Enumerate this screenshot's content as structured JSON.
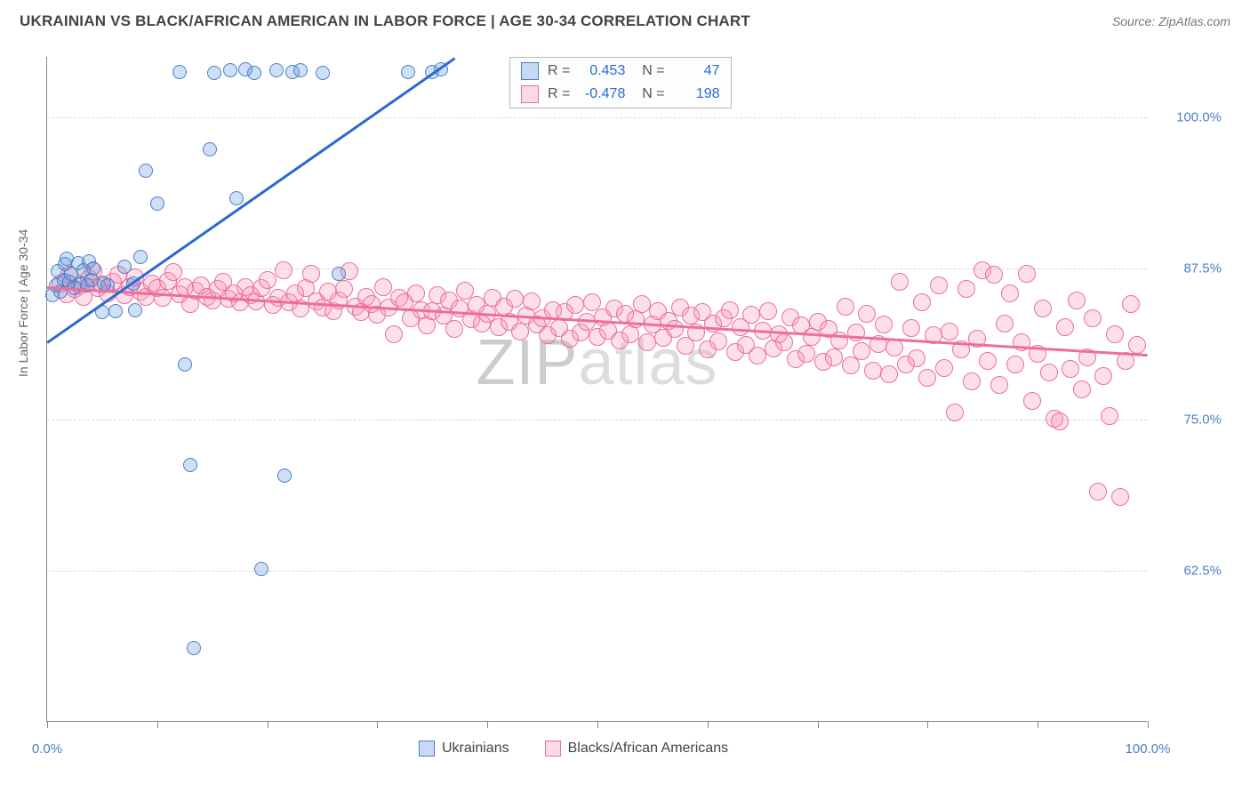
{
  "header": {
    "title": "UKRAINIAN VS BLACK/AFRICAN AMERICAN IN LABOR FORCE | AGE 30-34 CORRELATION CHART",
    "source": "Source: ZipAtlas.com"
  },
  "chart": {
    "type": "scatter",
    "y_label": "In Labor Force | Age 30-34",
    "watermark": "ZIPatlas",
    "background_color": "#ffffff",
    "grid_color": "#d8d8d8",
    "axis_color": "#888888",
    "tick_label_color": "#4a7ec9",
    "x_range": [
      0,
      100
    ],
    "y_range": [
      50,
      105
    ],
    "y_ticks": [
      62.5,
      75.0,
      87.5,
      100.0
    ],
    "y_tick_labels": [
      "62.5%",
      "75.0%",
      "87.5%",
      "100.0%"
    ],
    "x_ticks": [
      0,
      10,
      20,
      30,
      40,
      50,
      60,
      70,
      80,
      90,
      100
    ],
    "x_tick_labels": {
      "first": "0.0%",
      "last": "100.0%"
    },
    "series": {
      "ukrainians": {
        "label": "Ukrainians",
        "color_fill": "rgba(96,150,220,0.30)",
        "color_stroke": "#4a7ec9",
        "trend_color": "#2a6ad0",
        "marker_radius": 8,
        "r_value": "0.453",
        "n_value": "47",
        "trend": {
          "x1": 0,
          "y1": 81.5,
          "x2": 37,
          "y2": 105
        },
        "points": [
          [
            0.5,
            85.2
          ],
          [
            0.8,
            86.0
          ],
          [
            1.0,
            87.2
          ],
          [
            1.2,
            85.5
          ],
          [
            1.5,
            86.5
          ],
          [
            1.6,
            87.8
          ],
          [
            1.8,
            88.2
          ],
          [
            2.0,
            86.3
          ],
          [
            2.2,
            87.0
          ],
          [
            2.5,
            85.8
          ],
          [
            2.8,
            87.9
          ],
          [
            3.0,
            86.1
          ],
          [
            3.3,
            87.3
          ],
          [
            3.6,
            86.0
          ],
          [
            3.8,
            88.0
          ],
          [
            4.0,
            86.5
          ],
          [
            4.2,
            87.4
          ],
          [
            5.0,
            83.8
          ],
          [
            5.2,
            86.2
          ],
          [
            5.5,
            86.0
          ],
          [
            6.2,
            83.9
          ],
          [
            7.0,
            87.6
          ],
          [
            7.8,
            86.2
          ],
          [
            8.0,
            84.0
          ],
          [
            8.5,
            88.4
          ],
          [
            9.0,
            95.5
          ],
          [
            10.0,
            92.8
          ],
          [
            12.0,
            103.7
          ],
          [
            12.5,
            79.5
          ],
          [
            13.0,
            71.2
          ],
          [
            13.3,
            56.0
          ],
          [
            14.8,
            97.3
          ],
          [
            15.2,
            103.6
          ],
          [
            16.6,
            103.8
          ],
          [
            17.2,
            93.2
          ],
          [
            18.0,
            103.9
          ],
          [
            18.8,
            103.6
          ],
          [
            19.5,
            62.6
          ],
          [
            20.8,
            103.8
          ],
          [
            21.6,
            70.3
          ],
          [
            22.3,
            103.7
          ],
          [
            23.0,
            103.8
          ],
          [
            25.0,
            103.6
          ],
          [
            26.5,
            87.0
          ],
          [
            32.8,
            103.7
          ],
          [
            35.0,
            103.7
          ],
          [
            35.8,
            103.9
          ]
        ]
      },
      "black_african_american": {
        "label": "Blacks/African Americans",
        "color_fill": "rgba(248,150,185,0.30)",
        "color_stroke": "#ed6e9a",
        "trend_color": "#ed6e9a",
        "marker_radius": 10,
        "r_value": "-0.478",
        "n_value": "198",
        "trend": {
          "x1": 0,
          "y1": 86.0,
          "x2": 100,
          "y2": 80.4
        },
        "points": [
          [
            1.2,
            86.2
          ],
          [
            1.8,
            85.3
          ],
          [
            2.0,
            86.9
          ],
          [
            2.5,
            85.7
          ],
          [
            3.0,
            86.0
          ],
          [
            3.3,
            85.1
          ],
          [
            3.8,
            86.6
          ],
          [
            4.2,
            87.2
          ],
          [
            4.6,
            85.8
          ],
          [
            5.0,
            86.1
          ],
          [
            5.5,
            85.4
          ],
          [
            6.0,
            86.3
          ],
          [
            6.5,
            86.9
          ],
          [
            7.0,
            85.2
          ],
          [
            7.5,
            85.9
          ],
          [
            8.0,
            86.7
          ],
          [
            8.5,
            85.5
          ],
          [
            9.0,
            85.1
          ],
          [
            9.5,
            86.2
          ],
          [
            10.0,
            85.8
          ],
          [
            10.5,
            85.0
          ],
          [
            11.0,
            86.4
          ],
          [
            11.5,
            87.1
          ],
          [
            12.0,
            85.3
          ],
          [
            12.5,
            85.9
          ],
          [
            13.0,
            84.5
          ],
          [
            13.5,
            85.6
          ],
          [
            14.0,
            86.0
          ],
          [
            14.5,
            85.1
          ],
          [
            15.0,
            84.8
          ],
          [
            15.5,
            85.7
          ],
          [
            16.0,
            86.3
          ],
          [
            16.5,
            84.9
          ],
          [
            17.0,
            85.4
          ],
          [
            17.5,
            84.6
          ],
          [
            18.0,
            85.9
          ],
          [
            18.5,
            85.2
          ],
          [
            19.0,
            84.7
          ],
          [
            19.5,
            85.8
          ],
          [
            20.0,
            86.5
          ],
          [
            20.5,
            84.4
          ],
          [
            21.0,
            85.0
          ],
          [
            21.5,
            87.3
          ],
          [
            22.0,
            84.6
          ],
          [
            22.5,
            85.4
          ],
          [
            23.0,
            84.1
          ],
          [
            23.5,
            85.8
          ],
          [
            24.0,
            87.0
          ],
          [
            24.5,
            84.7
          ],
          [
            25.0,
            84.2
          ],
          [
            25.5,
            85.5
          ],
          [
            26.0,
            83.9
          ],
          [
            26.5,
            84.8
          ],
          [
            27.0,
            85.7
          ],
          [
            27.5,
            87.2
          ],
          [
            28.0,
            84.3
          ],
          [
            28.5,
            83.8
          ],
          [
            29.0,
            85.1
          ],
          [
            29.5,
            84.5
          ],
          [
            30.0,
            83.6
          ],
          [
            30.5,
            85.9
          ],
          [
            31.0,
            84.2
          ],
          [
            31.5,
            82.0
          ],
          [
            32.0,
            85.0
          ],
          [
            32.5,
            84.6
          ],
          [
            33.0,
            83.3
          ],
          [
            33.5,
            85.4
          ],
          [
            34.0,
            84.0
          ],
          [
            34.5,
            82.7
          ],
          [
            35.0,
            83.9
          ],
          [
            35.5,
            85.2
          ],
          [
            36.0,
            83.5
          ],
          [
            36.5,
            84.8
          ],
          [
            37.0,
            82.4
          ],
          [
            37.5,
            84.1
          ],
          [
            38.0,
            85.6
          ],
          [
            38.5,
            83.2
          ],
          [
            39.0,
            84.4
          ],
          [
            39.5,
            82.9
          ],
          [
            40.0,
            83.7
          ],
          [
            40.5,
            85.0
          ],
          [
            41.0,
            82.6
          ],
          [
            41.5,
            84.3
          ],
          [
            42.0,
            83.0
          ],
          [
            42.5,
            84.9
          ],
          [
            43.0,
            82.2
          ],
          [
            43.5,
            83.5
          ],
          [
            44.0,
            84.7
          ],
          [
            44.5,
            82.8
          ],
          [
            45.0,
            83.3
          ],
          [
            45.5,
            81.9
          ],
          [
            46.0,
            84.0
          ],
          [
            46.5,
            82.5
          ],
          [
            47.0,
            83.8
          ],
          [
            47.5,
            81.6
          ],
          [
            48.0,
            84.4
          ],
          [
            48.5,
            82.1
          ],
          [
            49.0,
            83.0
          ],
          [
            49.5,
            84.6
          ],
          [
            50.0,
            81.8
          ],
          [
            50.5,
            83.4
          ],
          [
            51.0,
            82.3
          ],
          [
            51.5,
            84.1
          ],
          [
            52.0,
            81.5
          ],
          [
            52.5,
            83.7
          ],
          [
            53.0,
            82.0
          ],
          [
            53.5,
            83.2
          ],
          [
            54.0,
            84.5
          ],
          [
            54.5,
            81.3
          ],
          [
            55.0,
            82.8
          ],
          [
            55.5,
            83.9
          ],
          [
            56.0,
            81.7
          ],
          [
            56.5,
            83.1
          ],
          [
            57.0,
            82.4
          ],
          [
            57.5,
            84.2
          ],
          [
            58.0,
            81.0
          ],
          [
            58.5,
            83.5
          ],
          [
            59.0,
            82.1
          ],
          [
            59.5,
            83.8
          ],
          [
            60.0,
            80.7
          ],
          [
            60.5,
            82.9
          ],
          [
            61.0,
            81.4
          ],
          [
            61.5,
            83.3
          ],
          [
            62.0,
            84.0
          ],
          [
            62.5,
            80.5
          ],
          [
            63.0,
            82.6
          ],
          [
            63.5,
            81.1
          ],
          [
            64.0,
            83.6
          ],
          [
            64.5,
            80.2
          ],
          [
            65.0,
            82.3
          ],
          [
            65.5,
            83.9
          ],
          [
            66.0,
            80.8
          ],
          [
            66.5,
            82.0
          ],
          [
            67.0,
            81.3
          ],
          [
            67.5,
            83.4
          ],
          [
            68.0,
            79.9
          ],
          [
            68.5,
            82.7
          ],
          [
            69.0,
            80.4
          ],
          [
            69.5,
            81.8
          ],
          [
            70.0,
            83.0
          ],
          [
            70.5,
            79.7
          ],
          [
            71.0,
            82.4
          ],
          [
            71.5,
            80.1
          ],
          [
            72.0,
            81.5
          ],
          [
            72.5,
            84.3
          ],
          [
            73.0,
            79.4
          ],
          [
            73.5,
            82.1
          ],
          [
            74.0,
            80.6
          ],
          [
            74.5,
            83.7
          ],
          [
            75.0,
            79.0
          ],
          [
            75.5,
            81.2
          ],
          [
            76.0,
            82.8
          ],
          [
            76.5,
            78.7
          ],
          [
            77.0,
            80.9
          ],
          [
            77.5,
            86.3
          ],
          [
            78.0,
            79.5
          ],
          [
            78.5,
            82.5
          ],
          [
            79.0,
            80.0
          ],
          [
            79.5,
            84.6
          ],
          [
            80.0,
            78.4
          ],
          [
            80.5,
            81.9
          ],
          [
            81.0,
            86.0
          ],
          [
            81.5,
            79.2
          ],
          [
            82.0,
            82.2
          ],
          [
            82.5,
            75.5
          ],
          [
            83.0,
            80.7
          ],
          [
            83.5,
            85.7
          ],
          [
            84.0,
            78.1
          ],
          [
            84.5,
            81.6
          ],
          [
            85.0,
            87.3
          ],
          [
            85.5,
            79.8
          ],
          [
            86.0,
            86.9
          ],
          [
            86.5,
            77.8
          ],
          [
            87.0,
            82.9
          ],
          [
            87.5,
            85.4
          ],
          [
            88.0,
            79.5
          ],
          [
            88.5,
            81.3
          ],
          [
            89.0,
            87.0
          ],
          [
            89.5,
            76.5
          ],
          [
            90.0,
            80.4
          ],
          [
            90.5,
            84.1
          ],
          [
            91.0,
            78.8
          ],
          [
            91.5,
            75.0
          ],
          [
            92.0,
            74.8
          ],
          [
            92.5,
            82.6
          ],
          [
            93.0,
            79.1
          ],
          [
            93.5,
            84.8
          ],
          [
            94.0,
            77.4
          ],
          [
            94.5,
            80.1
          ],
          [
            95.0,
            83.3
          ],
          [
            95.5,
            69.0
          ],
          [
            96.0,
            78.5
          ],
          [
            96.5,
            75.2
          ],
          [
            97.0,
            82.0
          ],
          [
            97.5,
            68.5
          ],
          [
            98.0,
            79.8
          ],
          [
            98.5,
            84.5
          ],
          [
            99.0,
            81.1
          ]
        ]
      }
    }
  }
}
